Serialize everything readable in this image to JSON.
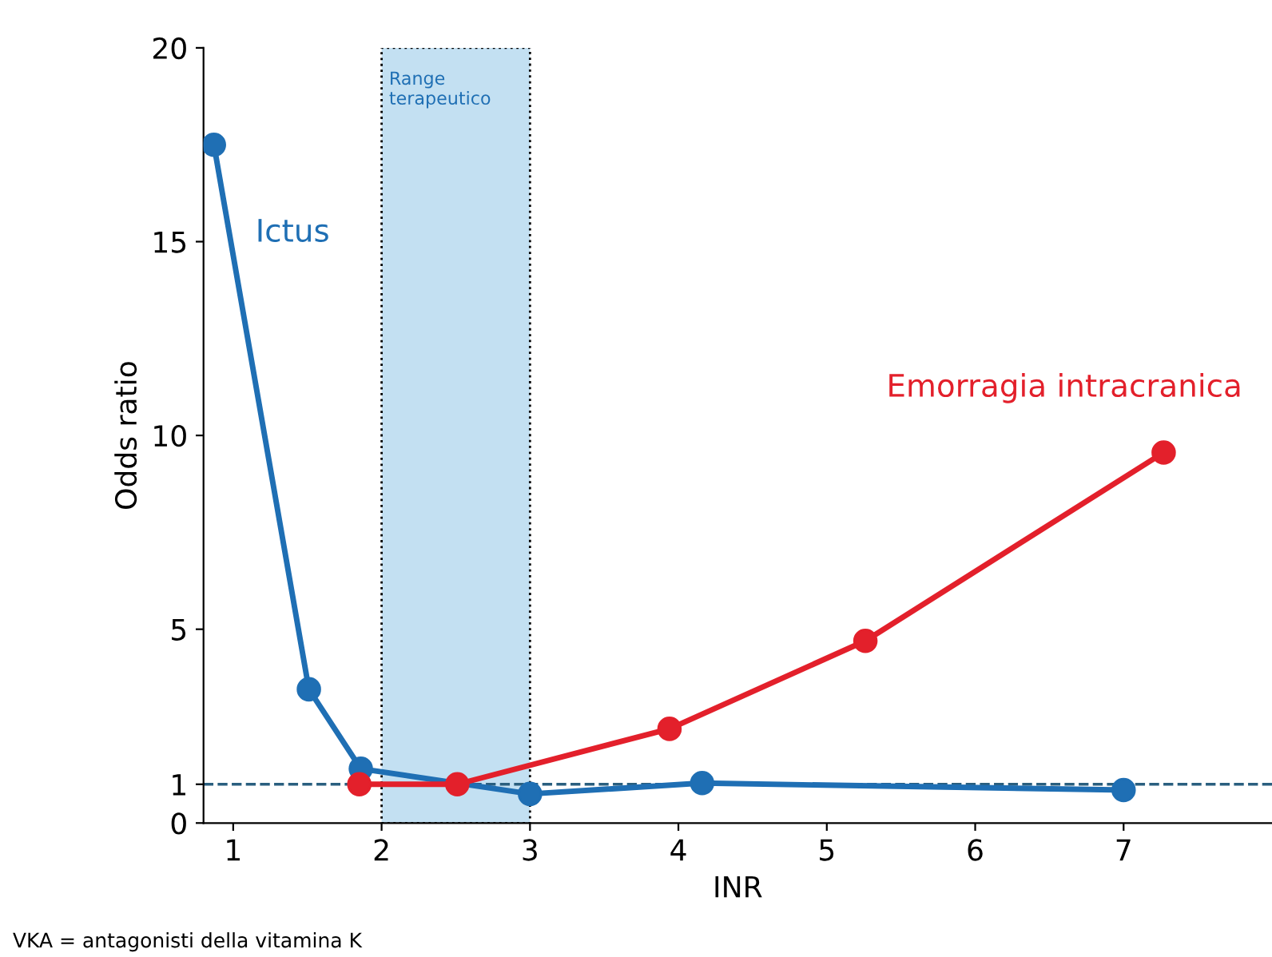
{
  "chart_data": {
    "type": "line",
    "xlabel": "INR",
    "ylabel": "Odds ratio",
    "xlim": [
      0.8,
      8
    ],
    "xticks": [
      1,
      2,
      3,
      4,
      5,
      6,
      7
    ],
    "ylim": [
      0,
      20
    ],
    "yticks": [
      0,
      1,
      5,
      10,
      15,
      20
    ],
    "grid": false,
    "legend": false,
    "marker": "circle",
    "line_style": "solid",
    "series": [
      {
        "name": "Ictus",
        "color": "#1f6fb4",
        "x": [
          0.87,
          1.51,
          1.86,
          3.0,
          4.16,
          7.0
        ],
        "values": [
          17.5,
          3.45,
          1.4,
          0.75,
          1.03,
          0.85
        ]
      },
      {
        "name": "Emorragia intracranica",
        "color": "#e3202b",
        "x": [
          1.85,
          2.51,
          3.94,
          5.26,
          7.27
        ],
        "values": [
          1.0,
          1.0,
          2.43,
          4.7,
          9.56
        ]
      }
    ],
    "ref_lines": [
      {
        "axis": "y",
        "value": 1,
        "label": null,
        "color": "#2a5f7f",
        "line_style": "dashed"
      }
    ],
    "bands": [
      {
        "axis": "x",
        "from": 2,
        "to": 3,
        "label": "Range\nterapeutico",
        "color": "#c3e0f2"
      }
    ],
    "annotations": [
      "VKA = antagonisti della vitamina K"
    ]
  }
}
